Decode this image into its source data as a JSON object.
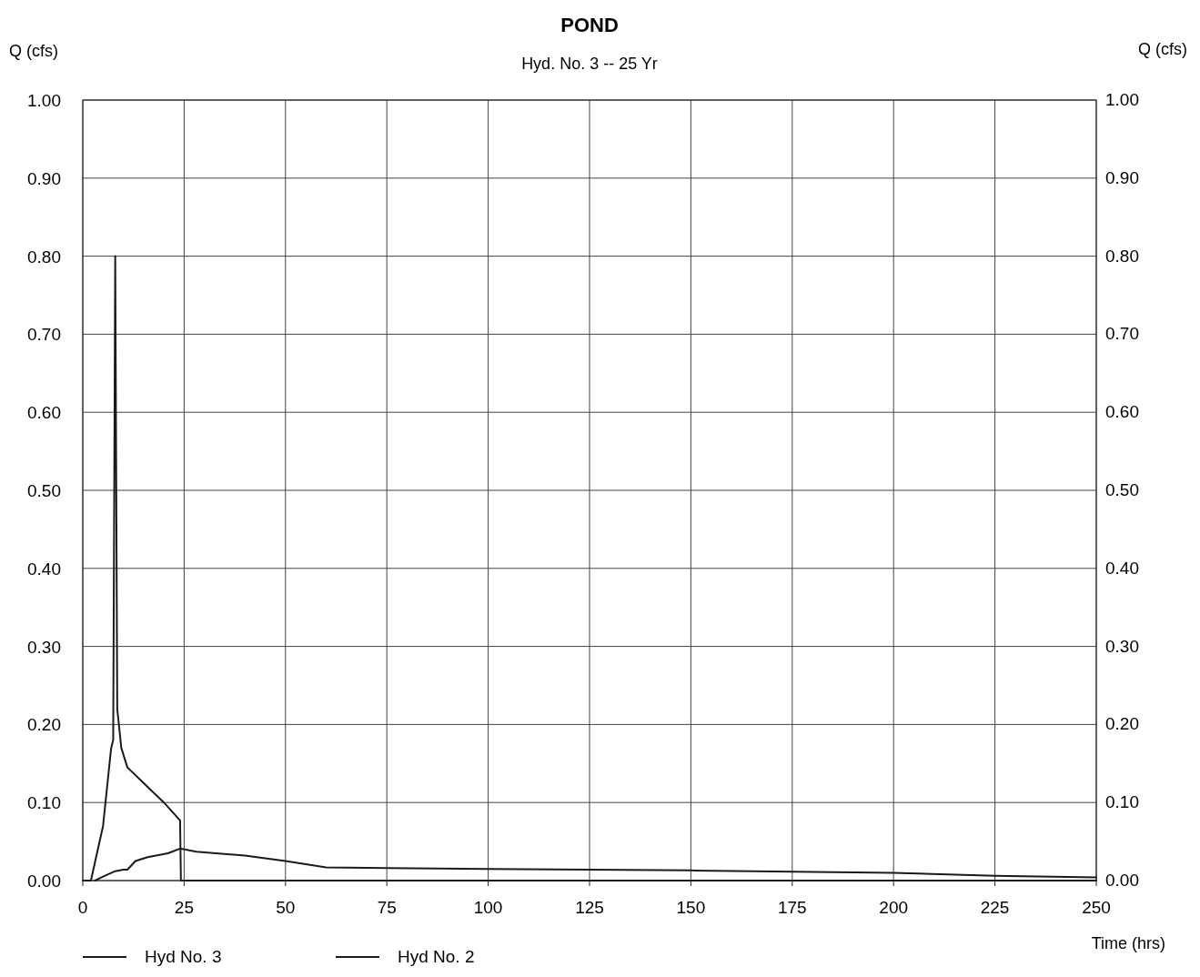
{
  "chart_data": {
    "type": "line",
    "title": "POND",
    "subtitle": "Hyd. No. 3 -- 25 Yr",
    "xlabel": "Time (hrs)",
    "ylabel": "Q (cfs)",
    "y2label": "Q (cfs)",
    "xlim": [
      0,
      250
    ],
    "xticks": [
      0,
      25,
      50,
      75,
      100,
      125,
      150,
      175,
      200,
      225,
      250
    ],
    "ylim": [
      0,
      1
    ],
    "yticks": [
      {
        "value": 0,
        "label": "0.00"
      },
      {
        "value": 0.1,
        "label": "0.10"
      },
      {
        "value": 0.2,
        "label": "0.20"
      },
      {
        "value": 0.3,
        "label": "0.30"
      },
      {
        "value": 0.4,
        "label": "0.40"
      },
      {
        "value": 0.5,
        "label": "0.50"
      },
      {
        "value": 0.6,
        "label": "0.60"
      },
      {
        "value": 0.7,
        "label": "0.70"
      },
      {
        "value": 0.8,
        "label": "0.80"
      },
      {
        "value": 0.9,
        "label": "0.90"
      },
      {
        "value": 1,
        "label": "1.00"
      }
    ],
    "y2lim": [
      0,
      1
    ],
    "y2ticks": [
      {
        "value": 0,
        "label": "0.00"
      },
      {
        "value": 0.1,
        "label": "0.10"
      },
      {
        "value": 0.2,
        "label": "0.20"
      },
      {
        "value": 0.3,
        "label": "0.30"
      },
      {
        "value": 0.4,
        "label": "0.40"
      },
      {
        "value": 0.5,
        "label": "0.50"
      },
      {
        "value": 0.6,
        "label": "0.60"
      },
      {
        "value": 0.7,
        "label": "0.70"
      },
      {
        "value": 0.8,
        "label": "0.80"
      },
      {
        "value": 0.9,
        "label": "0.90"
      },
      {
        "value": 1,
        "label": "1.00"
      }
    ],
    "grid": true,
    "legend": "bottom left",
    "marker": "none",
    "line_style": "solid",
    "series": [
      {
        "name": "Hyd No. 3",
        "color": "#1a1a1a",
        "x": [
          3,
          5,
          8,
          10,
          11,
          13,
          16,
          21,
          24,
          28,
          40,
          50,
          60,
          75,
          100,
          150,
          200,
          225,
          250
        ],
        "values": [
          0,
          0.005,
          0.012,
          0.014,
          0.014,
          0.025,
          0.03,
          0.035,
          0.041,
          0.037,
          0.032,
          0.025,
          0.017,
          0.016,
          0.015,
          0.013,
          0.01,
          0.006,
          0.004
        ]
      },
      {
        "name": "Hyd No. 2",
        "color": "#1a1a1a",
        "x": [
          0,
          2,
          5,
          7,
          7.5,
          8,
          8.5,
          9.5,
          11,
          12,
          15,
          20,
          24,
          24.2,
          25,
          100,
          250
        ],
        "values": [
          0,
          0,
          0.07,
          0.17,
          0.18,
          0.8,
          0.22,
          0.17,
          0.145,
          0.14,
          0.125,
          0.1,
          0.077,
          0,
          0,
          0,
          0
        ]
      }
    ]
  }
}
